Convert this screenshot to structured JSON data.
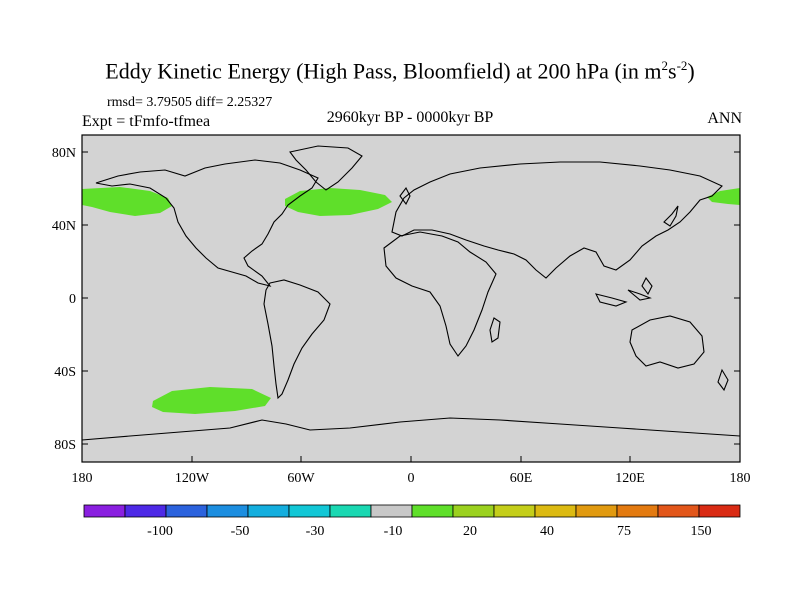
{
  "title": {
    "text": "Eddy Kinetic Energy (High Pass, Bloomfield) at 200 hPa (in m",
    "unit_exp1": "2",
    "unit_mid": "s",
    "unit_exp2": "-2",
    "close": ")"
  },
  "stats": "rmsd= 3.79505 diff= 2.25327",
  "expt": "Expt = tFmfo-tfmea",
  "period": "2960kyr BP - 0000kyr BP",
  "season": "ANN",
  "map": {
    "background_color": "#d3d3d3",
    "anomaly_color": "#5fdf2a",
    "lat_ticks": [
      "80N",
      "40N",
      "0",
      "40S",
      "80S"
    ],
    "lon_ticks": [
      "180",
      "120W",
      "60W",
      "0",
      "60E",
      "120E",
      "180"
    ],
    "anomaly_regions": [
      {
        "name": "north-pacific-west-patch",
        "value_range": "10-20"
      },
      {
        "name": "north-atlantic-patch",
        "value_range": "10-20"
      },
      {
        "name": "north-pacific-east-patch",
        "value_range": "10-20"
      },
      {
        "name": "south-pacific-patch",
        "value_range": "10-20"
      }
    ]
  },
  "colorbar": {
    "colors": [
      "#8a1fe0",
      "#4d29e6",
      "#2b62dd",
      "#1c8ee0",
      "#14aede",
      "#12c7d6",
      "#1ad8b2",
      "#c8c8c8",
      "#5fdf2a",
      "#9bd11f",
      "#c4ce1a",
      "#dcba12",
      "#e19a10",
      "#e37a10",
      "#e2561a",
      "#d92b14"
    ],
    "labels": [
      "-100",
      "-50",
      "-30",
      "-10",
      "20",
      "40",
      "75",
      "150"
    ]
  }
}
